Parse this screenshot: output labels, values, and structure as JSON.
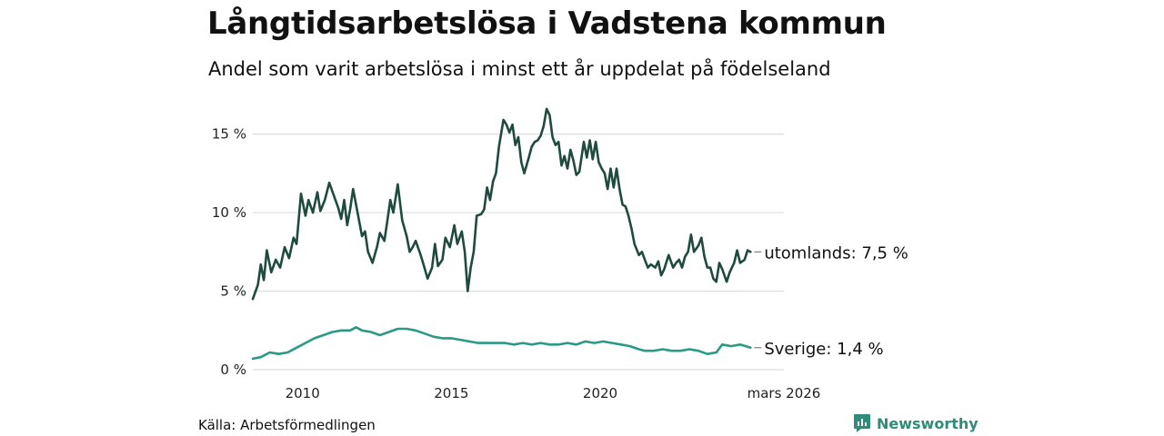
{
  "title": "Långtidsarbetslösa i Vadstena kommun",
  "subtitle": "Andel som varit arbetslösa i minst ett år uppdelat på födelseland",
  "source": "Källa: Arbetsförmedlingen",
  "brand": "Newsworthy",
  "colors": {
    "utomlands": "#1f4a3f",
    "sverige": "#2a9a86",
    "grid": "#dddddd",
    "brand": "#2f8c78"
  },
  "chart_data": {
    "type": "line",
    "ylim": [
      0,
      17
    ],
    "yticks": [
      {
        "value": 0,
        "label": "0 %"
      },
      {
        "value": 5,
        "label": "5 %"
      },
      {
        "value": 10,
        "label": "10 %"
      },
      {
        "value": 15,
        "label": "15 %"
      }
    ],
    "xlim": [
      2008.33,
      2026.17
    ],
    "xticks": [
      {
        "value": 2010,
        "label": "2010"
      },
      {
        "value": 2015,
        "label": "2015"
      },
      {
        "value": 2020,
        "label": "2020"
      },
      {
        "value": 2026.17,
        "label": "mars 2026"
      }
    ],
    "series": [
      {
        "name": "utomlands",
        "end_label": "utomlands: 7,5 %",
        "points": [
          [
            2008.33,
            4.5
          ],
          [
            2008.5,
            5.4
          ],
          [
            2008.6,
            6.7
          ],
          [
            2008.7,
            5.7
          ],
          [
            2008.8,
            7.6
          ],
          [
            2008.95,
            6.2
          ],
          [
            2009.1,
            7.0
          ],
          [
            2009.25,
            6.5
          ],
          [
            2009.4,
            7.8
          ],
          [
            2009.55,
            7.1
          ],
          [
            2009.7,
            8.4
          ],
          [
            2009.8,
            8.0
          ],
          [
            2009.95,
            11.2
          ],
          [
            2010.1,
            9.8
          ],
          [
            2010.2,
            10.8
          ],
          [
            2010.35,
            10.0
          ],
          [
            2010.5,
            11.3
          ],
          [
            2010.6,
            10.1
          ],
          [
            2010.75,
            10.8
          ],
          [
            2010.9,
            11.9
          ],
          [
            2011.05,
            11.1
          ],
          [
            2011.2,
            10.3
          ],
          [
            2011.3,
            9.6
          ],
          [
            2011.4,
            10.8
          ],
          [
            2011.5,
            9.2
          ],
          [
            2011.6,
            10.2
          ],
          [
            2011.7,
            11.5
          ],
          [
            2011.85,
            10.0
          ],
          [
            2012.0,
            8.5
          ],
          [
            2012.1,
            8.8
          ],
          [
            2012.2,
            7.5
          ],
          [
            2012.35,
            6.8
          ],
          [
            2012.5,
            7.8
          ],
          [
            2012.6,
            8.7
          ],
          [
            2012.75,
            8.2
          ],
          [
            2012.85,
            9.5
          ],
          [
            2012.95,
            10.8
          ],
          [
            2013.05,
            10.0
          ],
          [
            2013.2,
            11.8
          ],
          [
            2013.35,
            9.5
          ],
          [
            2013.5,
            8.5
          ],
          [
            2013.6,
            7.5
          ],
          [
            2013.7,
            7.8
          ],
          [
            2013.8,
            8.2
          ],
          [
            2013.95,
            7.4
          ],
          [
            2014.05,
            6.8
          ],
          [
            2014.2,
            5.8
          ],
          [
            2014.35,
            6.5
          ],
          [
            2014.45,
            8.0
          ],
          [
            2014.55,
            6.6
          ],
          [
            2014.7,
            7.0
          ],
          [
            2014.8,
            8.4
          ],
          [
            2014.95,
            7.8
          ],
          [
            2015.1,
            9.2
          ],
          [
            2015.2,
            8.0
          ],
          [
            2015.35,
            8.8
          ],
          [
            2015.45,
            7.5
          ],
          [
            2015.55,
            5.0
          ],
          [
            2015.65,
            6.5
          ],
          [
            2015.75,
            7.5
          ],
          [
            2015.85,
            9.8
          ],
          [
            2016.0,
            9.9
          ],
          [
            2016.1,
            10.2
          ],
          [
            2016.2,
            11.6
          ],
          [
            2016.3,
            10.8
          ],
          [
            2016.4,
            12.0
          ],
          [
            2016.5,
            12.5
          ],
          [
            2016.6,
            14.2
          ],
          [
            2016.75,
            15.9
          ],
          [
            2016.85,
            15.6
          ],
          [
            2016.95,
            15.1
          ],
          [
            2017.05,
            15.6
          ],
          [
            2017.15,
            14.3
          ],
          [
            2017.25,
            14.8
          ],
          [
            2017.35,
            13.2
          ],
          [
            2017.45,
            12.5
          ],
          [
            2017.6,
            13.5
          ],
          [
            2017.7,
            14.2
          ],
          [
            2017.8,
            14.5
          ],
          [
            2017.9,
            14.6
          ],
          [
            2018.0,
            14.9
          ],
          [
            2018.1,
            15.5
          ],
          [
            2018.2,
            16.6
          ],
          [
            2018.3,
            16.2
          ],
          [
            2018.4,
            14.8
          ],
          [
            2018.5,
            14.3
          ],
          [
            2018.6,
            14.5
          ],
          [
            2018.7,
            13.0
          ],
          [
            2018.8,
            13.6
          ],
          [
            2018.9,
            12.8
          ],
          [
            2019.0,
            14.0
          ],
          [
            2019.1,
            13.3
          ],
          [
            2019.2,
            12.4
          ],
          [
            2019.3,
            12.6
          ],
          [
            2019.45,
            14.5
          ],
          [
            2019.55,
            13.5
          ],
          [
            2019.65,
            14.6
          ],
          [
            2019.75,
            13.4
          ],
          [
            2019.85,
            14.5
          ],
          [
            2019.95,
            13.2
          ],
          [
            2020.05,
            12.8
          ],
          [
            2020.15,
            12.5
          ],
          [
            2020.25,
            11.5
          ],
          [
            2020.35,
            12.8
          ],
          [
            2020.45,
            11.6
          ],
          [
            2020.55,
            12.8
          ],
          [
            2020.65,
            11.5
          ],
          [
            2020.75,
            10.5
          ],
          [
            2020.85,
            10.4
          ],
          [
            2020.95,
            9.8
          ],
          [
            2021.05,
            9.0
          ],
          [
            2021.15,
            8.0
          ],
          [
            2021.3,
            7.3
          ],
          [
            2021.4,
            7.5
          ],
          [
            2021.5,
            7.0
          ],
          [
            2021.6,
            6.5
          ],
          [
            2021.7,
            6.7
          ],
          [
            2021.85,
            6.5
          ],
          [
            2021.95,
            6.9
          ],
          [
            2022.05,
            6.0
          ],
          [
            2022.15,
            6.4
          ],
          [
            2022.3,
            7.3
          ],
          [
            2022.45,
            6.5
          ],
          [
            2022.55,
            6.8
          ],
          [
            2022.65,
            7.0
          ],
          [
            2022.75,
            6.5
          ],
          [
            2022.85,
            7.2
          ],
          [
            2022.95,
            7.5
          ],
          [
            2023.05,
            8.6
          ],
          [
            2023.15,
            7.5
          ],
          [
            2023.3,
            7.9
          ],
          [
            2023.4,
            8.4
          ],
          [
            2023.5,
            7.2
          ],
          [
            2023.6,
            6.5
          ],
          [
            2023.7,
            6.5
          ],
          [
            2023.8,
            5.8
          ],
          [
            2023.9,
            5.6
          ],
          [
            2024.0,
            6.8
          ],
          [
            2024.1,
            6.4
          ],
          [
            2024.25,
            5.6
          ],
          [
            2024.35,
            6.2
          ],
          [
            2024.5,
            6.8
          ],
          [
            2024.6,
            7.6
          ],
          [
            2024.7,
            6.8
          ],
          [
            2024.85,
            7.0
          ],
          [
            2024.95,
            7.6
          ],
          [
            2025.05,
            7.5
          ]
        ]
      },
      {
        "name": "sverige",
        "end_label": "Sverige: 1,4 %",
        "points": [
          [
            2008.33,
            0.7
          ],
          [
            2008.6,
            0.8
          ],
          [
            2008.9,
            1.1
          ],
          [
            2009.2,
            1.0
          ],
          [
            2009.5,
            1.1
          ],
          [
            2009.8,
            1.4
          ],
          [
            2010.1,
            1.7
          ],
          [
            2010.4,
            2.0
          ],
          [
            2010.7,
            2.2
          ],
          [
            2011.0,
            2.4
          ],
          [
            2011.3,
            2.5
          ],
          [
            2011.6,
            2.5
          ],
          [
            2011.8,
            2.7
          ],
          [
            2012.0,
            2.5
          ],
          [
            2012.3,
            2.4
          ],
          [
            2012.6,
            2.2
          ],
          [
            2012.9,
            2.4
          ],
          [
            2013.2,
            2.6
          ],
          [
            2013.5,
            2.6
          ],
          [
            2013.8,
            2.5
          ],
          [
            2014.1,
            2.3
          ],
          [
            2014.4,
            2.1
          ],
          [
            2014.7,
            2.0
          ],
          [
            2015.0,
            2.0
          ],
          [
            2015.3,
            1.9
          ],
          [
            2015.6,
            1.8
          ],
          [
            2015.9,
            1.7
          ],
          [
            2016.2,
            1.7
          ],
          [
            2016.5,
            1.7
          ],
          [
            2016.8,
            1.7
          ],
          [
            2017.1,
            1.6
          ],
          [
            2017.4,
            1.7
          ],
          [
            2017.7,
            1.6
          ],
          [
            2018.0,
            1.7
          ],
          [
            2018.3,
            1.6
          ],
          [
            2018.6,
            1.6
          ],
          [
            2018.9,
            1.7
          ],
          [
            2019.2,
            1.6
          ],
          [
            2019.5,
            1.8
          ],
          [
            2019.8,
            1.7
          ],
          [
            2020.1,
            1.8
          ],
          [
            2020.4,
            1.7
          ],
          [
            2020.7,
            1.6
          ],
          [
            2021.0,
            1.5
          ],
          [
            2021.3,
            1.3
          ],
          [
            2021.5,
            1.2
          ],
          [
            2021.8,
            1.2
          ],
          [
            2022.1,
            1.3
          ],
          [
            2022.4,
            1.2
          ],
          [
            2022.7,
            1.2
          ],
          [
            2023.0,
            1.3
          ],
          [
            2023.3,
            1.2
          ],
          [
            2023.6,
            1.0
          ],
          [
            2023.9,
            1.1
          ],
          [
            2024.1,
            1.6
          ],
          [
            2024.4,
            1.5
          ],
          [
            2024.7,
            1.6
          ],
          [
            2025.05,
            1.4
          ]
        ]
      }
    ]
  }
}
